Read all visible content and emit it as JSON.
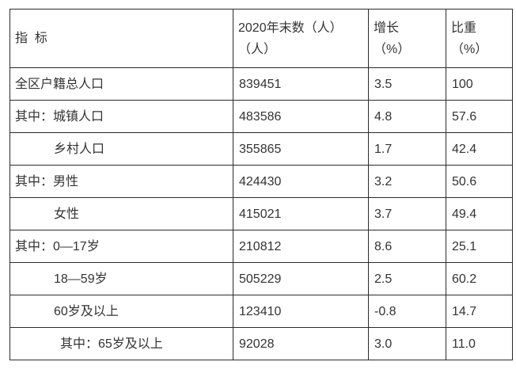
{
  "chart_data": {
    "type": "table",
    "title": "",
    "header": {
      "indicator": "指  标",
      "year_end": "2020年末数（人）\n（人）",
      "growth": "增长\n（%）",
      "share": "比重\n（%）"
    },
    "columns": [
      "指 标",
      "2020年末数（人）（人）",
      "增长（%）",
      "比重（%）"
    ],
    "rows": [
      {
        "label": "全区户籍总人口",
        "value": "839451",
        "growth": "3.5",
        "share": "100"
      },
      {
        "label": "其中：城镇人口",
        "value": "483586",
        "growth": "4.8",
        "share": "57.6"
      },
      {
        "label": "乡村人口",
        "value": "355865",
        "growth": "1.7",
        "share": "42.4"
      },
      {
        "label": "其中：男性",
        "value": "424430",
        "growth": "3.2",
        "share": "50.6"
      },
      {
        "label": "女性",
        "value": "415021",
        "growth": "3.7",
        "share": "49.4"
      },
      {
        "label": "其中：0—17岁",
        "value": "210812",
        "growth": "8.6",
        "share": "25.1"
      },
      {
        "label": "18—59岁",
        "value": "505229",
        "growth": "2.5",
        "share": "60.2"
      },
      {
        "label": "60岁及以上",
        "value": "123410",
        "growth": "-0.8",
        "share": "14.7"
      },
      {
        "label": "其中：65岁及以上",
        "value": "92028",
        "growth": "3.0",
        "share": "11.0"
      }
    ],
    "layout": {
      "grid": true,
      "border_color": "#2b2b2b",
      "text_color": "#333333",
      "background_color": "#ffffff"
    }
  }
}
